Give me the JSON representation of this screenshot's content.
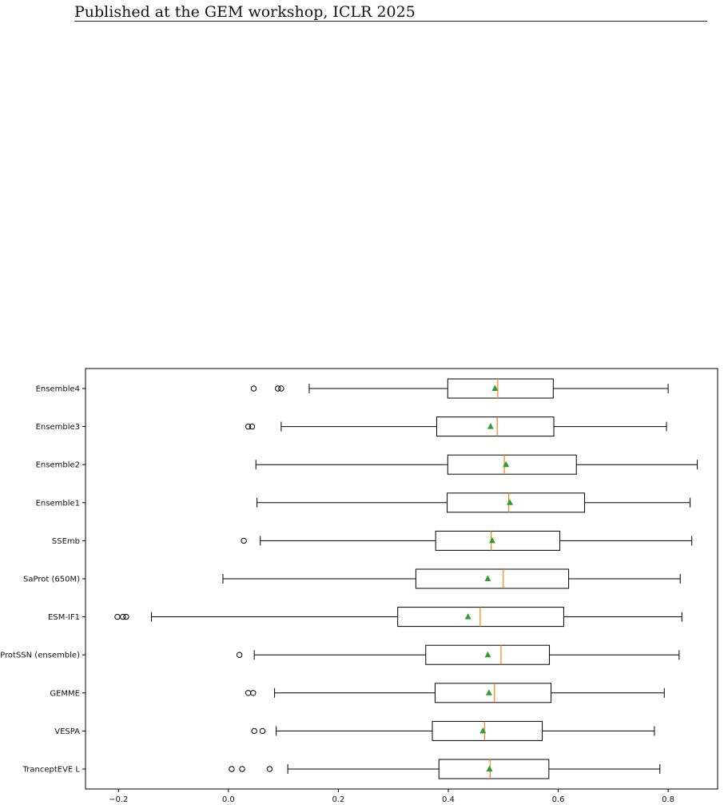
{
  "header": {
    "text": "Published at the GEM workshop, ICLR 2025"
  },
  "chart_data": {
    "type": "box",
    "orientation": "horizontal",
    "title": "",
    "xlabel": "",
    "ylabel": "",
    "xlim": [
      -0.26,
      0.89
    ],
    "x_ticks": [
      -0.2,
      0.0,
      0.2,
      0.4,
      0.6,
      0.8
    ],
    "x_tick_labels": [
      "−0.2",
      "0.0",
      "0.2",
      "0.4",
      "0.6",
      "0.8"
    ],
    "grid": false,
    "colors": {
      "box": "#000000",
      "median": "#ff7f0e",
      "mean": "#2ca02c",
      "outlier": "#000000"
    },
    "categories": [
      "Ensemble4",
      "Ensemble3",
      "Ensemble2",
      "Ensemble1",
      "SSEmb",
      "SaProt (650M)",
      "ESM-IF1",
      "ProtSSN (ensemble)",
      "GEMME",
      "VESPA",
      "TranceptEVE L"
    ],
    "series": [
      {
        "category": "Ensemble4",
        "whisker_low": 0.147,
        "q1": 0.399,
        "median": 0.49,
        "q3": 0.591,
        "whisker_high": 0.8,
        "mean": 0.485,
        "outliers": [
          0.046,
          0.09,
          0.096
        ]
      },
      {
        "category": "Ensemble3",
        "whisker_low": 0.096,
        "q1": 0.379,
        "median": 0.489,
        "q3": 0.592,
        "whisker_high": 0.797,
        "mean": 0.477,
        "outliers": [
          0.036,
          0.043
        ]
      },
      {
        "category": "Ensemble2",
        "whisker_low": 0.05,
        "q1": 0.399,
        "median": 0.502,
        "q3": 0.633,
        "whisker_high": 0.853,
        "mean": 0.505,
        "outliers": []
      },
      {
        "category": "Ensemble1",
        "whisker_low": 0.052,
        "q1": 0.398,
        "median": 0.51,
        "q3": 0.648,
        "whisker_high": 0.84,
        "mean": 0.512,
        "outliers": []
      },
      {
        "category": "SSEmb",
        "whisker_low": 0.058,
        "q1": 0.377,
        "median": 0.478,
        "q3": 0.603,
        "whisker_high": 0.843,
        "mean": 0.48,
        "outliers": [
          0.028
        ]
      },
      {
        "category": "SaProt (650M)",
        "whisker_low": -0.01,
        "q1": 0.341,
        "median": 0.5,
        "q3": 0.619,
        "whisker_high": 0.822,
        "mean": 0.472,
        "outliers": []
      },
      {
        "category": "ESM-IF1",
        "whisker_low": -0.14,
        "q1": 0.308,
        "median": 0.458,
        "q3": 0.61,
        "whisker_high": 0.825,
        "mean": 0.436,
        "outliers": [
          -0.202,
          -0.192,
          -0.186
        ]
      },
      {
        "category": "ProtSSN (ensemble)",
        "whisker_low": 0.047,
        "q1": 0.359,
        "median": 0.496,
        "q3": 0.584,
        "whisker_high": 0.82,
        "mean": 0.472,
        "outliers": [
          0.02
        ]
      },
      {
        "category": "GEMME",
        "whisker_low": 0.084,
        "q1": 0.376,
        "median": 0.484,
        "q3": 0.587,
        "whisker_high": 0.793,
        "mean": 0.474,
        "outliers": [
          0.036,
          0.045
        ]
      },
      {
        "category": "VESPA",
        "whisker_low": 0.087,
        "q1": 0.371,
        "median": 0.466,
        "q3": 0.571,
        "whisker_high": 0.775,
        "mean": 0.463,
        "outliers": [
          0.047,
          0.062
        ]
      },
      {
        "category": "TranceptEVE L",
        "whisker_low": 0.108,
        "q1": 0.383,
        "median": 0.476,
        "q3": 0.583,
        "whisker_high": 0.785,
        "mean": 0.475,
        "outliers": [
          0.006,
          0.025,
          0.075
        ]
      }
    ]
  }
}
